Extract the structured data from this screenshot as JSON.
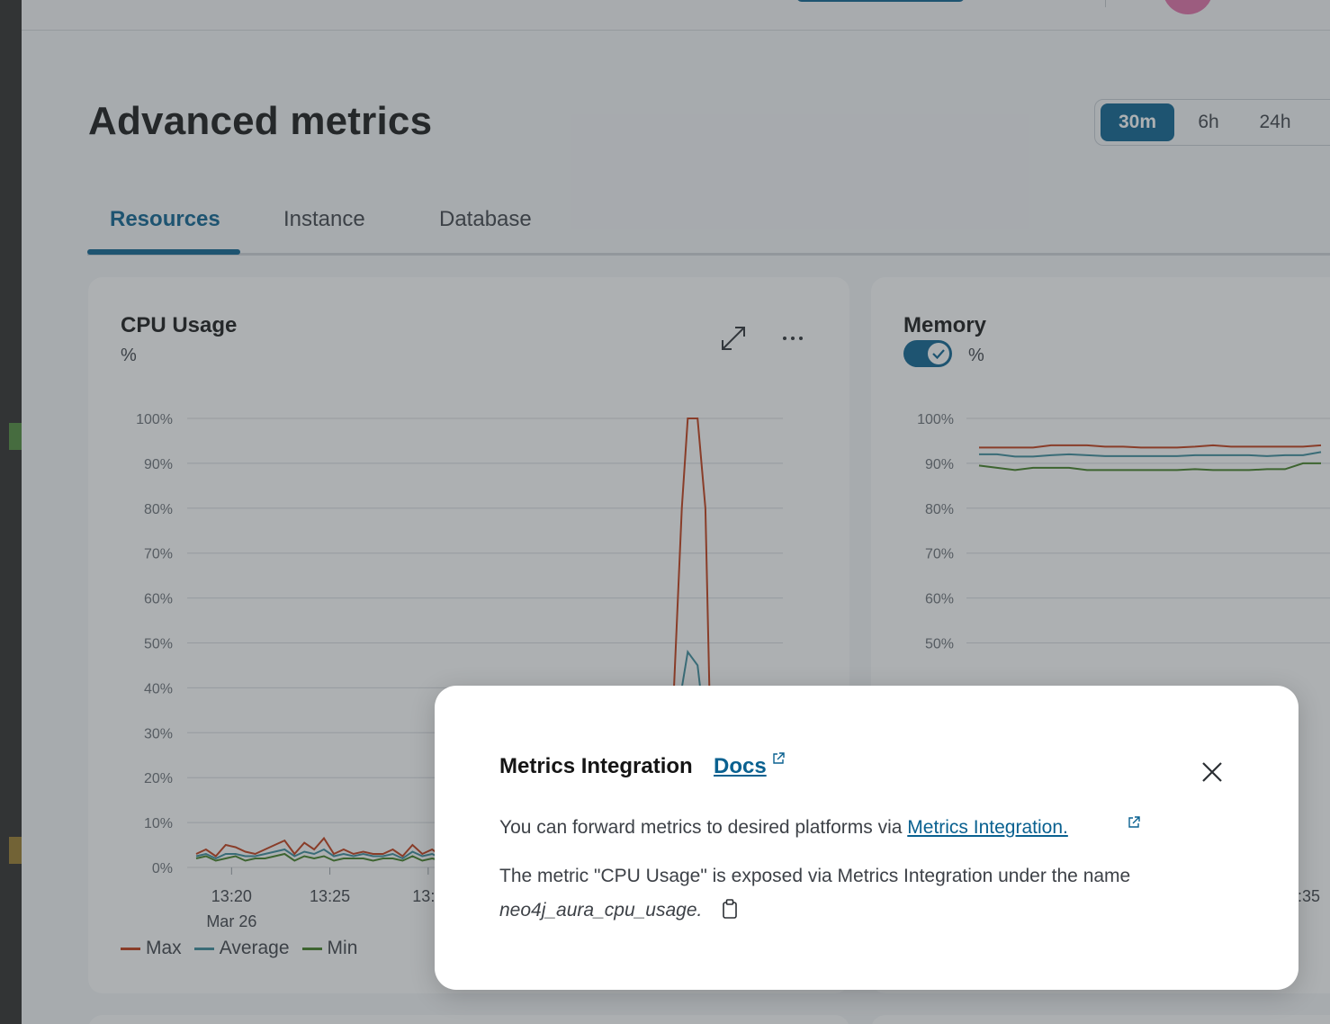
{
  "page": {
    "title": "Advanced metrics"
  },
  "time_range": {
    "options": [
      "30m",
      "6h",
      "24h"
    ],
    "selected": "30m"
  },
  "tabs": [
    {
      "label": "Resources",
      "active": true
    },
    {
      "label": "Instance",
      "active": false
    },
    {
      "label": "Database",
      "active": false
    }
  ],
  "cpu_card": {
    "title": "CPU Usage",
    "unit": "%",
    "icons": {
      "expand": "expand-icon",
      "more": "more-horizontal-icon"
    }
  },
  "memory_card": {
    "title": "Memory",
    "unit": "%",
    "toggle_on": true,
    "visible_x_tick": ":35"
  },
  "chart_data": [
    {
      "type": "line",
      "title": "CPU Usage",
      "ylabel": "%",
      "ylim": [
        0,
        100
      ],
      "y_ticks": [
        "0%",
        "10%",
        "20%",
        "30%",
        "40%",
        "50%",
        "60%",
        "70%",
        "80%",
        "90%",
        "100%"
      ],
      "x_ticks": [
        "13:20",
        "13:25",
        "13:3"
      ],
      "x_date_label": "Mar 26",
      "grid": true,
      "legend_position": "bottom-left",
      "x_minutes": [
        0,
        0.5,
        1,
        1.5,
        2,
        2.5,
        3,
        3.5,
        4,
        4.5,
        5,
        5.5,
        6,
        6.5,
        7,
        7.5,
        8,
        8.5,
        9,
        9.5,
        10,
        10.5,
        11,
        11.5,
        12,
        12.5,
        13,
        13.5,
        14,
        14.5,
        15,
        15.5,
        16,
        16.5,
        17,
        17.5,
        18,
        18.5,
        19,
        19.5,
        20,
        20.5,
        21,
        21.5,
        22,
        22.5,
        23,
        23.5,
        24,
        24.5,
        25,
        25.5,
        26,
        26.5,
        27,
        27.5,
        28,
        28.5,
        29,
        29.5,
        30,
        30.5,
        31,
        31.5
      ],
      "series": [
        {
          "name": "Max",
          "color": "#c23a14",
          "values": [
            3,
            4,
            2.5,
            5,
            4.5,
            3.5,
            3,
            4,
            5,
            6,
            3,
            5.5,
            4,
            6.5,
            3,
            4,
            3,
            3.5,
            3,
            3,
            4,
            2.5,
            5,
            3,
            4,
            2.5,
            4.5,
            3,
            4,
            3.5,
            4.5,
            3,
            4,
            3.5,
            4,
            3,
            4.5,
            3,
            3.5,
            3,
            3,
            3.5,
            3,
            4,
            3,
            3.5,
            3,
            3,
            4,
            3,
            3.5,
            3,
            3,
            4,
            3,
            3.5,
            3,
            3,
            4,
            3,
            3.5,
            3,
            3,
            3.5
          ]
        },
        {
          "name": "Average",
          "color": "#3a8a9a",
          "values": [
            2.5,
            3,
            2,
            3,
            3,
            2.5,
            2.5,
            3,
            3.5,
            4,
            2.5,
            3.5,
            3,
            4,
            2.5,
            3,
            2.5,
            3,
            2.5,
            2.5,
            3,
            2,
            3.5,
            2.5,
            3,
            2,
            3,
            2.5,
            3,
            2.5,
            3,
            2.5,
            3,
            2.5,
            3,
            2.5,
            3,
            2.5,
            3,
            2.5,
            2.5,
            3,
            2.5,
            3,
            2.5,
            3,
            2.5,
            2.5,
            3,
            2.5,
            3,
            2.5,
            2.5,
            3,
            2.5,
            3,
            2.5,
            2.5,
            3,
            2.5,
            3,
            2.5,
            2.5,
            3
          ]
        },
        {
          "name": "Min",
          "color": "#3f7d1f",
          "values": [
            2,
            2.5,
            1.5,
            2,
            2.5,
            1.5,
            2,
            2,
            2.5,
            3,
            1.5,
            2.5,
            2,
            2.5,
            1.5,
            2,
            2,
            2,
            1.5,
            2,
            2,
            1.5,
            2.5,
            1.5,
            2,
            1.5,
            2,
            1.5,
            2,
            1.5,
            2,
            1.5,
            2,
            1.5,
            2,
            1.5,
            2,
            1.5,
            2,
            1.5,
            2,
            2,
            1.5,
            2,
            1.5,
            2,
            1.5,
            2,
            2,
            1.5,
            2,
            1.5,
            2,
            2,
            1.5,
            2,
            1.5,
            2,
            2,
            1.5,
            2,
            1.5,
            2,
            2
          ]
        }
      ],
      "spike": {
        "x_minutes": [
          24.3,
          24.7,
          25.0,
          25.5,
          25.9,
          26.1
        ],
        "max": [
          40,
          80,
          100,
          100,
          80,
          40
        ],
        "average": [
          20,
          40,
          48,
          45,
          30,
          20
        ]
      }
    },
    {
      "type": "line",
      "title": "Memory",
      "ylabel": "%",
      "ylim": [
        0,
        100
      ],
      "y_ticks": [
        "50%",
        "60%",
        "70%",
        "80%",
        "90%",
        "100%"
      ],
      "grid": true,
      "x_minutes": [
        0,
        1,
        2,
        3,
        4,
        5,
        6,
        7,
        8,
        9,
        10,
        11,
        12,
        13,
        14,
        15,
        16,
        17,
        18,
        19
      ],
      "series": [
        {
          "name": "Max",
          "color": "#c23a14",
          "values": [
            93.5,
            93.5,
            93.5,
            93.5,
            94,
            94,
            94,
            93.7,
            93.7,
            93.5,
            93.5,
            93.5,
            93.7,
            94,
            93.7,
            93.7,
            93.7,
            93.7,
            93.7,
            94
          ]
        },
        {
          "name": "Average",
          "color": "#3a8a9a",
          "values": [
            92,
            92,
            91.5,
            91.5,
            91.8,
            92,
            91.8,
            91.6,
            91.6,
            91.6,
            91.6,
            91.6,
            91.8,
            91.8,
            91.8,
            91.8,
            91.6,
            91.8,
            91.8,
            92.5
          ]
        },
        {
          "name": "Min",
          "color": "#3f7d1f",
          "values": [
            89.5,
            89,
            88.5,
            89,
            89,
            89,
            88.5,
            88.5,
            88.5,
            88.5,
            88.5,
            88.5,
            88.7,
            88.5,
            88.5,
            88.5,
            88.7,
            88.7,
            90,
            90
          ]
        }
      ]
    }
  ],
  "legend": [
    {
      "label": "Max",
      "color": "#c23a14"
    },
    {
      "label": "Average",
      "color": "#3a8a9a"
    },
    {
      "label": "Min",
      "color": "#3f7d1f"
    }
  ],
  "modal": {
    "title": "Metrics Integration",
    "docs_link": "Docs",
    "line1_prefix": "You can forward metrics to desired platforms via ",
    "line1_link": "Metrics Integration.",
    "line2": "The metric \"CPU Usage\" is exposed via Metrics Integration under the name",
    "metric_name": "neo4j_aura_cpu_usage.",
    "icons": {
      "close": "close-icon",
      "external": "external-link-icon",
      "copy": "copy-icon"
    }
  }
}
